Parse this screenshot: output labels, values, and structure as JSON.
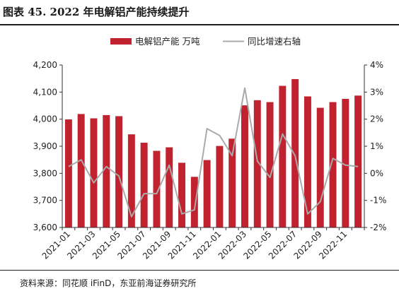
{
  "header": {
    "title": "图表 45. 2022 年电解铝产能持续提升"
  },
  "footer": {
    "source": "资料来源：同花顺 iFinD，东亚前海证券研究所"
  },
  "chart_data": {
    "type": "bar",
    "categories": [
      "2021-01",
      "2021-02",
      "2021-03",
      "2021-04",
      "2021-05",
      "2021-06",
      "2021-07",
      "2021-08",
      "2021-09",
      "2021-10",
      "2021-11",
      "2021-12",
      "2022-01",
      "2022-02",
      "2022-03",
      "2022-04",
      "2022-05",
      "2022-06",
      "2022-07",
      "2022-08",
      "2022-09",
      "2022-10",
      "2022-11",
      "2022-12"
    ],
    "x_tick_labels": [
      "2021-01",
      "2021-03",
      "2021-05",
      "2021-07",
      "2021-09",
      "2021-11",
      "2022-01",
      "2022-03",
      "2022-05",
      "2022-07",
      "2022-09",
      "2022-11"
    ],
    "series": [
      {
        "name": "电解铝产能 万吨",
        "type": "bar",
        "axis": "left",
        "color": "#c0232f",
        "values": [
          3999,
          4019,
          4003,
          4015,
          4011,
          3944,
          3913,
          3883,
          3896,
          3839,
          3787,
          3849,
          3901,
          3928,
          4051,
          4070,
          4063,
          4123,
          4148,
          4084,
          4042,
          4063,
          4075,
          4087
        ]
      },
      {
        "name": "同比增速右轴",
        "type": "line",
        "axis": "right",
        "unit": "%",
        "color": "#aaaaaa",
        "values": [
          0.25,
          0.5,
          -0.35,
          0.25,
          -0.1,
          -1.6,
          -0.75,
          -0.75,
          0.3,
          -1.5,
          -1.35,
          1.65,
          1.4,
          0.65,
          3.15,
          0.45,
          -0.15,
          1.45,
          0.65,
          -1.5,
          -1.05,
          0.55,
          0.3,
          0.25
        ]
      }
    ],
    "y_left": {
      "min": 3600,
      "max": 4200,
      "ticks": [
        "3,600",
        "3,700",
        "3,800",
        "3,900",
        "4,000",
        "4,100",
        "4,200"
      ]
    },
    "y_right": {
      "min": -2,
      "max": 4,
      "ticks": [
        "-2%",
        "-1%",
        "0%",
        "1%",
        "2%",
        "3%",
        "4%"
      ]
    },
    "grid": false,
    "legend_position": "top"
  }
}
